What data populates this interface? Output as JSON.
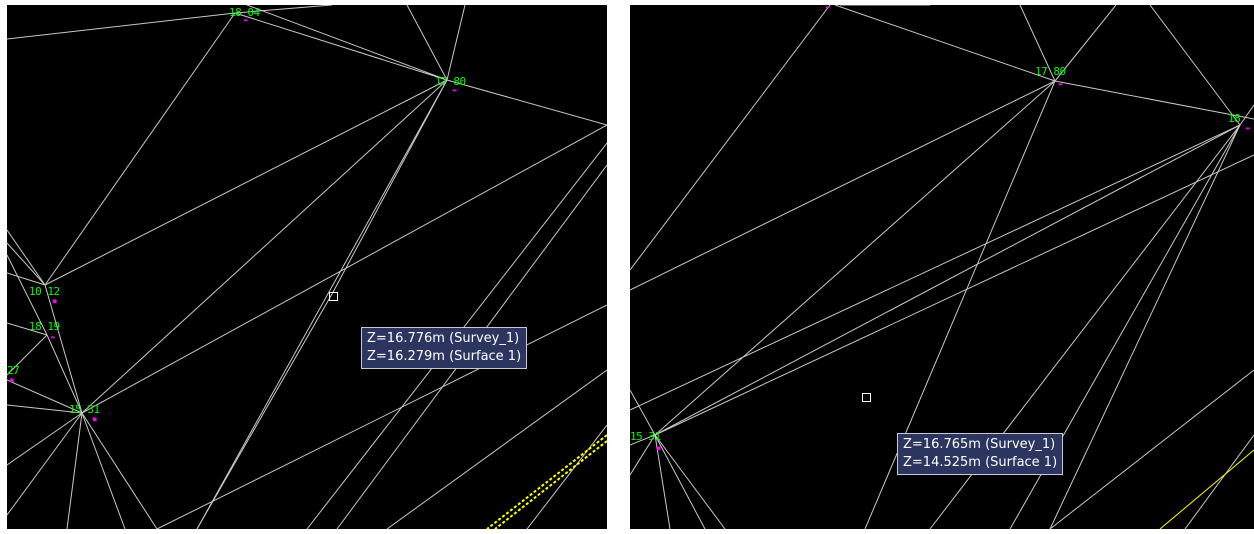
{
  "panels": [
    {
      "tooltip": {
        "line1": "Z=16.776m (Survey_1)",
        "line2": "Z=16.279m (Surface 1)"
      },
      "labels": {
        "top": "18 04",
        "top_right": "17 80",
        "left_upper": "10 12",
        "left_mid": "18 19",
        "left_edge": "27",
        "bottom_left": "15 31"
      }
    },
    {
      "tooltip": {
        "line1": "Z=16.765m (Survey_1)",
        "line2": "Z=14.525m (Surface 1)"
      },
      "labels": {
        "top_right": "17 80",
        "right_edge": "18",
        "bottom_left": "15 31"
      }
    }
  ],
  "colors": {
    "background": "#000000",
    "tin_edge": "#c8c8c8",
    "point_label": "#00ff00",
    "point_marker": "#ff00ff",
    "breakline": "#ffff00",
    "tooltip_bg": "#2b3560",
    "cursor": "#ffffff"
  }
}
